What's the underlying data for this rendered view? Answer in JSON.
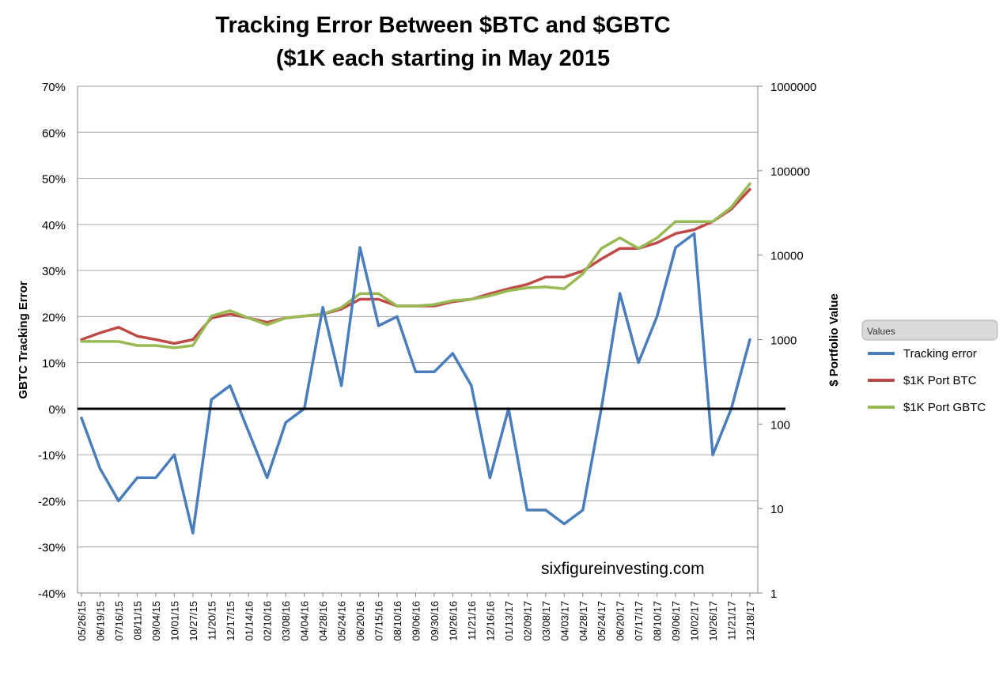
{
  "chart_data": {
    "type": "line",
    "title_line1": "Tracking Error Between $BTC and $GBTC",
    "title_line2": "($1K each starting in May 2015",
    "ylabel_left": "GBTC Tracking Error",
    "ylabel_right": "$ Portfolio Value",
    "ylim_left": [
      -40,
      70
    ],
    "left_ticks": [
      "70%",
      "60%",
      "50%",
      "40%",
      "30%",
      "20%",
      "10%",
      "0%",
      "-10%",
      "-20%",
      "-30%",
      "-40%"
    ],
    "right_scale": "log",
    "ylim_right": [
      1,
      1000000
    ],
    "right_ticks": [
      "1000000",
      "100000",
      "10000",
      "1000",
      "100",
      "10",
      "1"
    ],
    "x_tick_labels": [
      "05/26/15",
      "06/19/15",
      "07/16/15",
      "08/11/15",
      "09/04/15",
      "10/01/15",
      "10/27/15",
      "11/20/15",
      "12/17/15",
      "01/14/16",
      "02/10/16",
      "03/08/16",
      "04/04/16",
      "04/28/16",
      "05/24/16",
      "06/20/16",
      "07/15/16",
      "08/10/16",
      "09/06/16",
      "09/30/16",
      "10/26/16",
      "11/21/16",
      "12/16/16",
      "01/13/17",
      "02/09/17",
      "03/08/17",
      "04/03/17",
      "04/28/17",
      "05/24/17",
      "06/20/17",
      "07/17/17",
      "08/10/17",
      "09/06/17",
      "10/02/17",
      "10/26/17",
      "11/21/17",
      "12/18/17"
    ],
    "legend_title": "Values",
    "legend_position": "right",
    "grid": true,
    "watermark": "sixfigureinvesting.com",
    "x_index": [
      0,
      1,
      2,
      3,
      4,
      5,
      6,
      7,
      8,
      9,
      10,
      11,
      12,
      13,
      14,
      15,
      16,
      17,
      18,
      19,
      20,
      21,
      22,
      23,
      24,
      25,
      26,
      27,
      28,
      29,
      30,
      31,
      32,
      33,
      34,
      35,
      36
    ],
    "series": [
      {
        "name": "Tracking error",
        "axis": "left",
        "color": "#4a7ebb",
        "values": [
          -2,
          -13,
          -20,
          -15,
          -15,
          -10,
          -27,
          2,
          5,
          -5,
          -15,
          -3,
          0,
          22,
          5,
          35,
          18,
          20,
          8,
          8,
          12,
          5,
          -15,
          0,
          -22,
          -22,
          -25,
          -22,
          0,
          25,
          10,
          20,
          35,
          38,
          -10,
          0,
          15
        ]
      },
      {
        "name": "$1K Port BTC",
        "axis": "right",
        "color": "#be4b48",
        "values": [
          1000,
          1200,
          1400,
          1100,
          1000,
          900,
          1000,
          1800,
          2000,
          1800,
          1600,
          1800,
          1900,
          2000,
          2300,
          3000,
          3000,
          2500,
          2500,
          2500,
          2800,
          3000,
          3500,
          4000,
          4500,
          5500,
          5500,
          6500,
          9000,
          12000,
          12000,
          14000,
          18000,
          20000,
          25000,
          35000,
          60000
        ]
      },
      {
        "name": "$1K Port GBTC",
        "axis": "right",
        "color": "#98b954",
        "values": [
          950,
          950,
          950,
          850,
          850,
          800,
          850,
          1900,
          2200,
          1800,
          1500,
          1800,
          1900,
          2000,
          2400,
          3500,
          3500,
          2500,
          2500,
          2600,
          2900,
          3000,
          3300,
          3800,
          4100,
          4200,
          4000,
          6000,
          12000,
          16000,
          12000,
          16000,
          25000,
          25000,
          25000,
          37000,
          70000
        ]
      }
    ]
  }
}
